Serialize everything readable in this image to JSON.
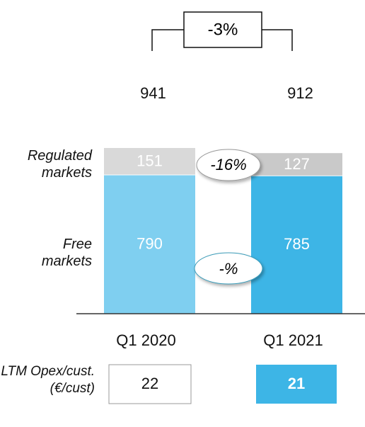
{
  "chart_data": {
    "type": "stacked_bar",
    "categories": [
      "Q1 2020",
      "Q1 2021"
    ],
    "series": [
      {
        "name": "Free markets",
        "colors": [
          "#7fcff0",
          "#3db5e6"
        ],
        "values": [
          790,
          785
        ]
      },
      {
        "name": "Regulated markets",
        "colors": [
          "#d9d9d9",
          "#c9c9c9"
        ],
        "values": [
          151,
          127
        ]
      }
    ],
    "totals": [
      941,
      912
    ],
    "ylim": [
      0,
      941
    ],
    "total_change": "-3%",
    "annotations": [
      "-16%",
      "-%"
    ],
    "opex": {
      "label": "LTM Opex/cust. (€/cust)",
      "values": [
        22,
        21
      ]
    }
  }
}
